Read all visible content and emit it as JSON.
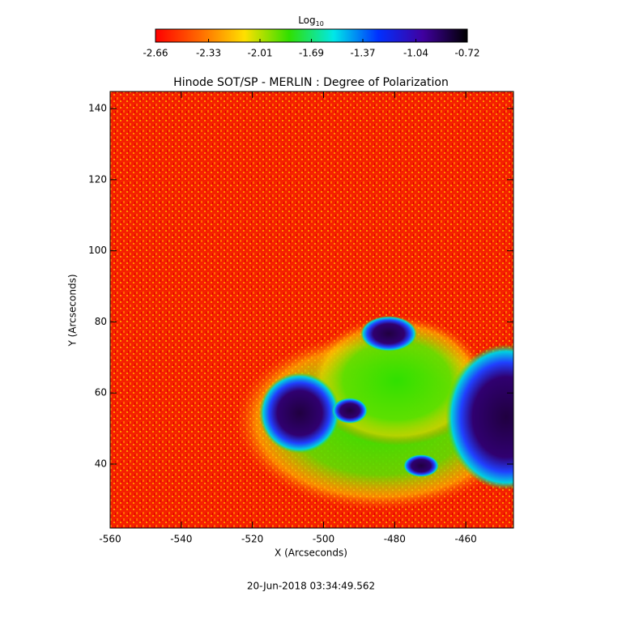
{
  "chart_data": {
    "type": "image",
    "title": "Hinode SOT/SP - MERLIN : Degree of Polarization",
    "x_label": "X (Arcseconds)",
    "y_label": "Y (Arcseconds)",
    "xlim": [
      -560,
      -446.6
    ],
    "xticks": [
      -560,
      -540,
      -520,
      -500,
      -480,
      -460
    ],
    "ylim": [
      22,
      144.8
    ],
    "yticks": [
      40,
      60,
      80,
      100,
      120,
      140
    ],
    "colorbar_label": "Log",
    "colorbar_label_sub": "10",
    "colorbar_lim": [
      -2.66,
      -0.72
    ],
    "colorbar_ticks": [
      -2.66,
      -2.33,
      -2.01,
      -1.69,
      -1.37,
      -1.04,
      -0.72
    ],
    "colormap": [
      "#ff0000",
      "#ff6a00",
      "#ffe000",
      "#30e000",
      "#00e8e8",
      "#0030ff",
      "#4000a0",
      "#000000"
    ],
    "timestamp": "20-Jun-2018 03:34:49.562"
  }
}
